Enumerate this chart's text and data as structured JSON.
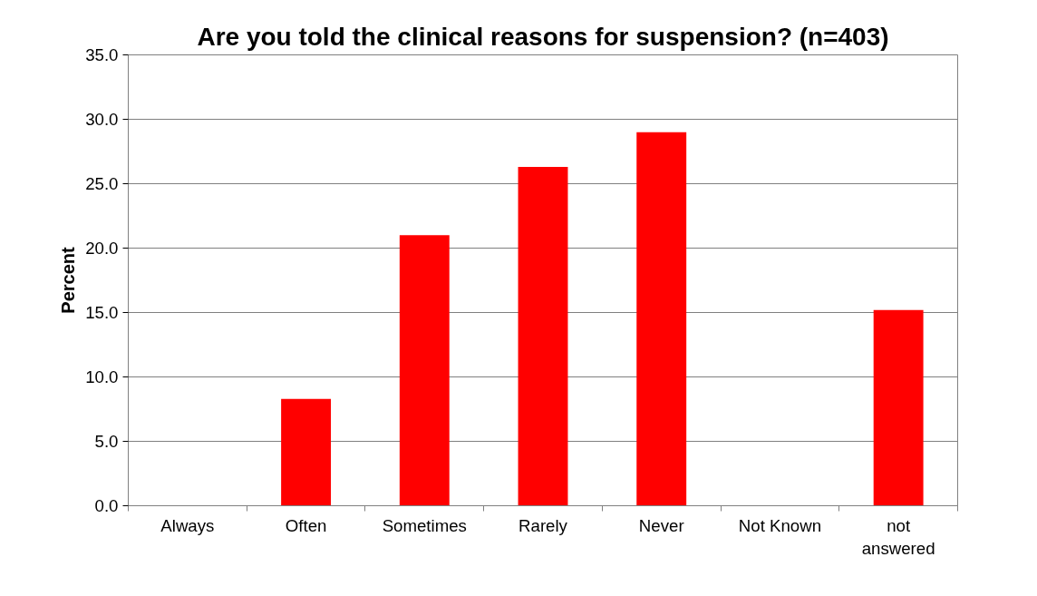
{
  "chart_data": {
    "type": "bar",
    "title": "Are you told the clinical reasons for suspension? (n=403)",
    "ylabel": "Percent",
    "categories": [
      "Always",
      "Often",
      "Sometimes",
      "Rarely",
      "Never",
      "Not Known",
      "not answered"
    ],
    "values": [
      0,
      8.3,
      21.0,
      26.3,
      29.0,
      0,
      15.2
    ],
    "color": "#ff0000",
    "ylim": [
      0,
      35
    ],
    "yticks": [
      {
        "value": 0,
        "label": "0.0"
      },
      {
        "value": 5,
        "label": "5.0"
      },
      {
        "value": 10,
        "label": "10.0"
      },
      {
        "value": 15,
        "label": "15.0"
      },
      {
        "value": 20,
        "label": "20.0"
      },
      {
        "value": 25,
        "label": "25.0"
      },
      {
        "value": 30,
        "label": "30.0"
      },
      {
        "value": 35,
        "label": "35.0"
      }
    ],
    "grid": "y"
  }
}
